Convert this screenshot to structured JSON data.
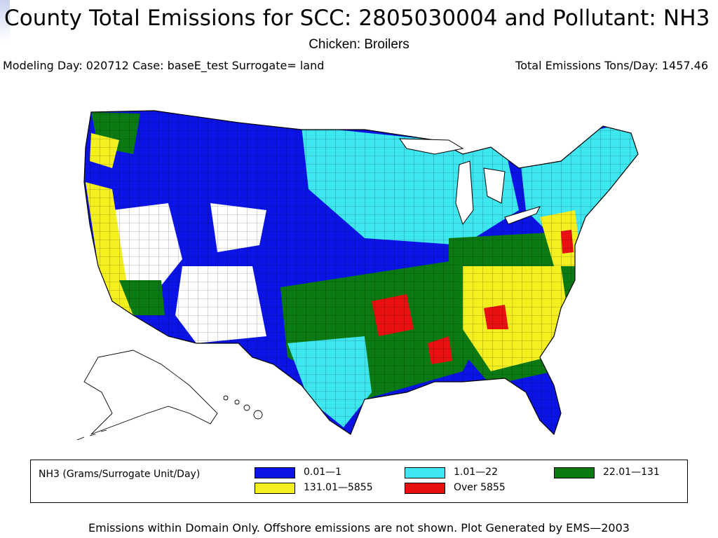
{
  "header": {
    "title": "County Total Emissions for SCC: 2805030004 and Pollutant: NH3",
    "subtitle": "Chicken: Broilers",
    "modeling_info": "Modeling Day: 020712 Case: baseE_test Surrogate=  land",
    "total_emissions": "Total Emissions Tons/Day: 1457.46"
  },
  "legend": {
    "title": "NH3 (Grams/Surrogate Unit/Day)",
    "items": [
      {
        "label": "0.01—1",
        "color": "#0a14e6"
      },
      {
        "label": "1.01—22",
        "color": "#3ee6f0"
      },
      {
        "label": "22.01—131",
        "color": "#0b7a12"
      },
      {
        "label": "131.01—5855",
        "color": "#f4f020"
      },
      {
        "label": "Over 5855",
        "color": "#e81010"
      }
    ]
  },
  "colors": {
    "no_data": "#ffffff",
    "county_border": "#000000",
    "water": "#ffffff"
  },
  "footer": "Emissions within Domain Only. Offshore emissions are not shown. Plot Generated by EMS—2003"
}
